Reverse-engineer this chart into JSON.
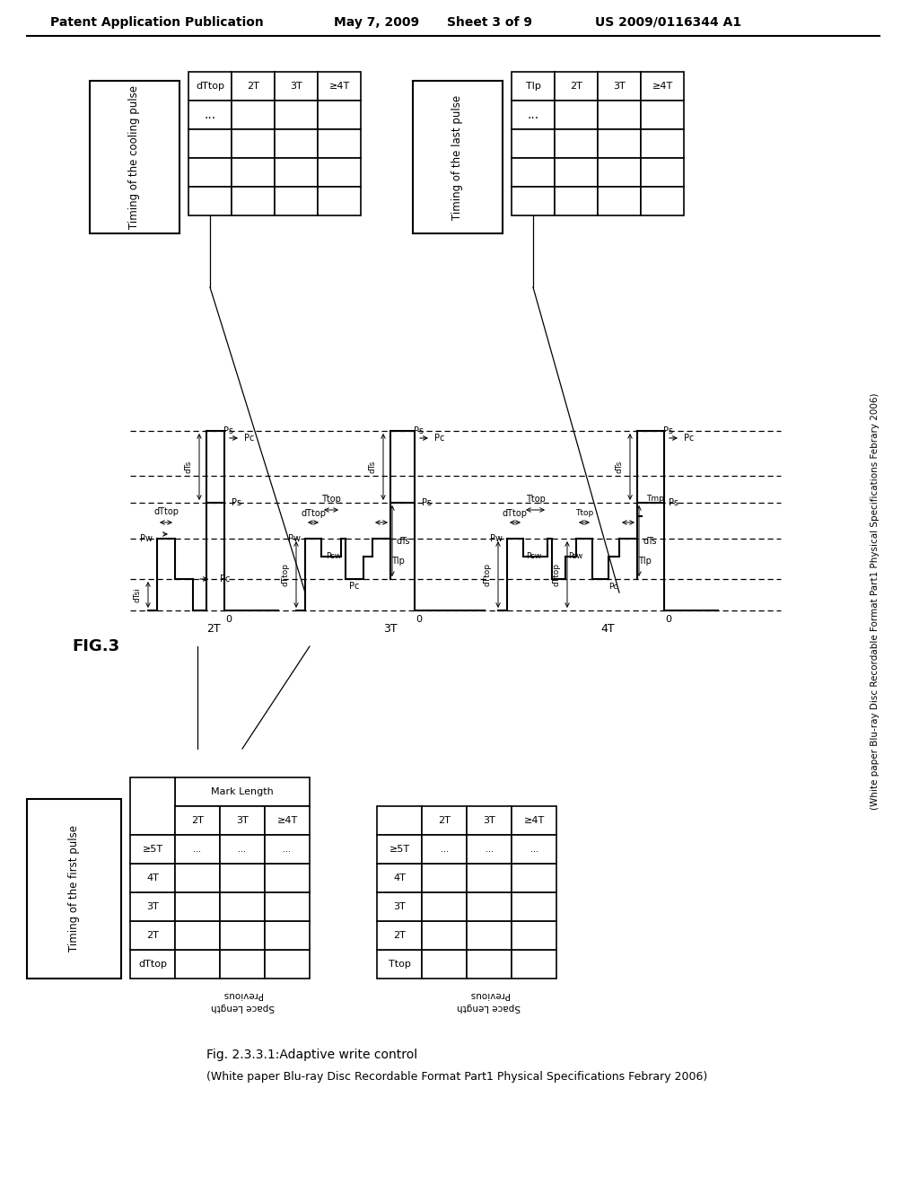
{
  "title_header": "Patent Application Publication",
  "date_header": "May 7, 2009",
  "sheet_header": "Sheet 3 of 9",
  "patent_header": "US 2009/0116344 A1",
  "fig_label": "FIG.3",
  "fig_caption": "Fig. 2.3.3.1:Adaptive write control",
  "fig_subcaption": "(White paper Blu-ray Disc Recordable Format Part1 Physical Specifications Febrary 2006)",
  "right_vert_text": "White paper Blu-ray Disc Recordable Format Part1 Physical Specifications Febrary 2006",
  "background": "#ffffff",
  "foreground": "#000000"
}
